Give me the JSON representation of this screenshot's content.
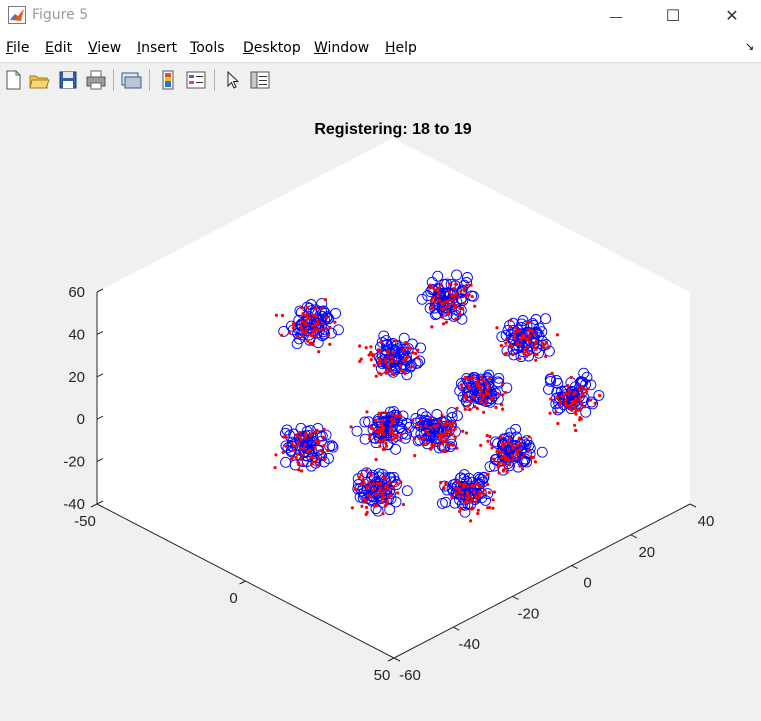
{
  "window": {
    "title": "Figure 5",
    "controls": {
      "minimize": "—",
      "maximize": "☐",
      "close": "✕"
    }
  },
  "menu": {
    "items": [
      {
        "name": "file",
        "first": "F",
        "rest": "ile"
      },
      {
        "name": "edit",
        "first": "E",
        "rest": "dit"
      },
      {
        "name": "view",
        "first": "V",
        "rest": "iew"
      },
      {
        "name": "insert",
        "first": "I",
        "rest": "nsert"
      },
      {
        "name": "tools",
        "first": "T",
        "rest": "ools"
      },
      {
        "name": "desktop",
        "first": "D",
        "rest": "esktop"
      },
      {
        "name": "window",
        "first": "W",
        "rest": "indow"
      },
      {
        "name": "help",
        "first": "H",
        "rest": "elp"
      }
    ],
    "dock_arrow": "↘"
  },
  "toolbar": {
    "buttons": [
      "new-figure-icon",
      "open-file-icon",
      "save-icon",
      "print-icon",
      "link-plot-icon",
      "insert-colorbar-icon",
      "insert-legend-icon",
      "edit-plot-pointer-icon",
      "property-inspector-icon"
    ]
  },
  "chart_data": {
    "type": "scatter",
    "title": "Registering: 18 to 19",
    "projection": "3d",
    "x_ticks": [
      "-50",
      "0",
      "50"
    ],
    "y_ticks": [
      "-60",
      "-40",
      "-20",
      "0",
      "20",
      "40"
    ],
    "z_ticks": [
      "-40",
      "-20",
      "0",
      "20",
      "40",
      "60"
    ],
    "xlim": [
      -50,
      50
    ],
    "ylim": [
      -60,
      40
    ],
    "zlim": [
      -40,
      60
    ],
    "grid": false,
    "series": [
      {
        "marker": "circle",
        "color": "#0000ff"
      },
      {
        "marker": "dot",
        "color": "#ff0000"
      }
    ],
    "clusters": [
      {
        "cx": -25,
        "cy": 40,
        "cz": 45
      },
      {
        "cx": 30,
        "cy": 30,
        "cz": 40
      },
      {
        "cx": 0,
        "cy": 12,
        "cz": 30
      },
      {
        "cx": -40,
        "cy": 5,
        "cz": 25
      },
      {
        "cx": 35,
        "cy": -5,
        "cz": 25
      },
      {
        "cx": 10,
        "cy": -15,
        "cz": 20
      },
      {
        "cx": -30,
        "cy": -20,
        "cz": 10
      },
      {
        "cx": 5,
        "cy": -30,
        "cz": 5
      },
      {
        "cx": 30,
        "cy": -40,
        "cz": 10
      },
      {
        "cx": 0,
        "cy": -5,
        "cz": 0
      },
      {
        "cx": -20,
        "cy": -45,
        "cz": -5
      },
      {
        "cx": 10,
        "cy": -55,
        "cz": -10
      }
    ]
  }
}
